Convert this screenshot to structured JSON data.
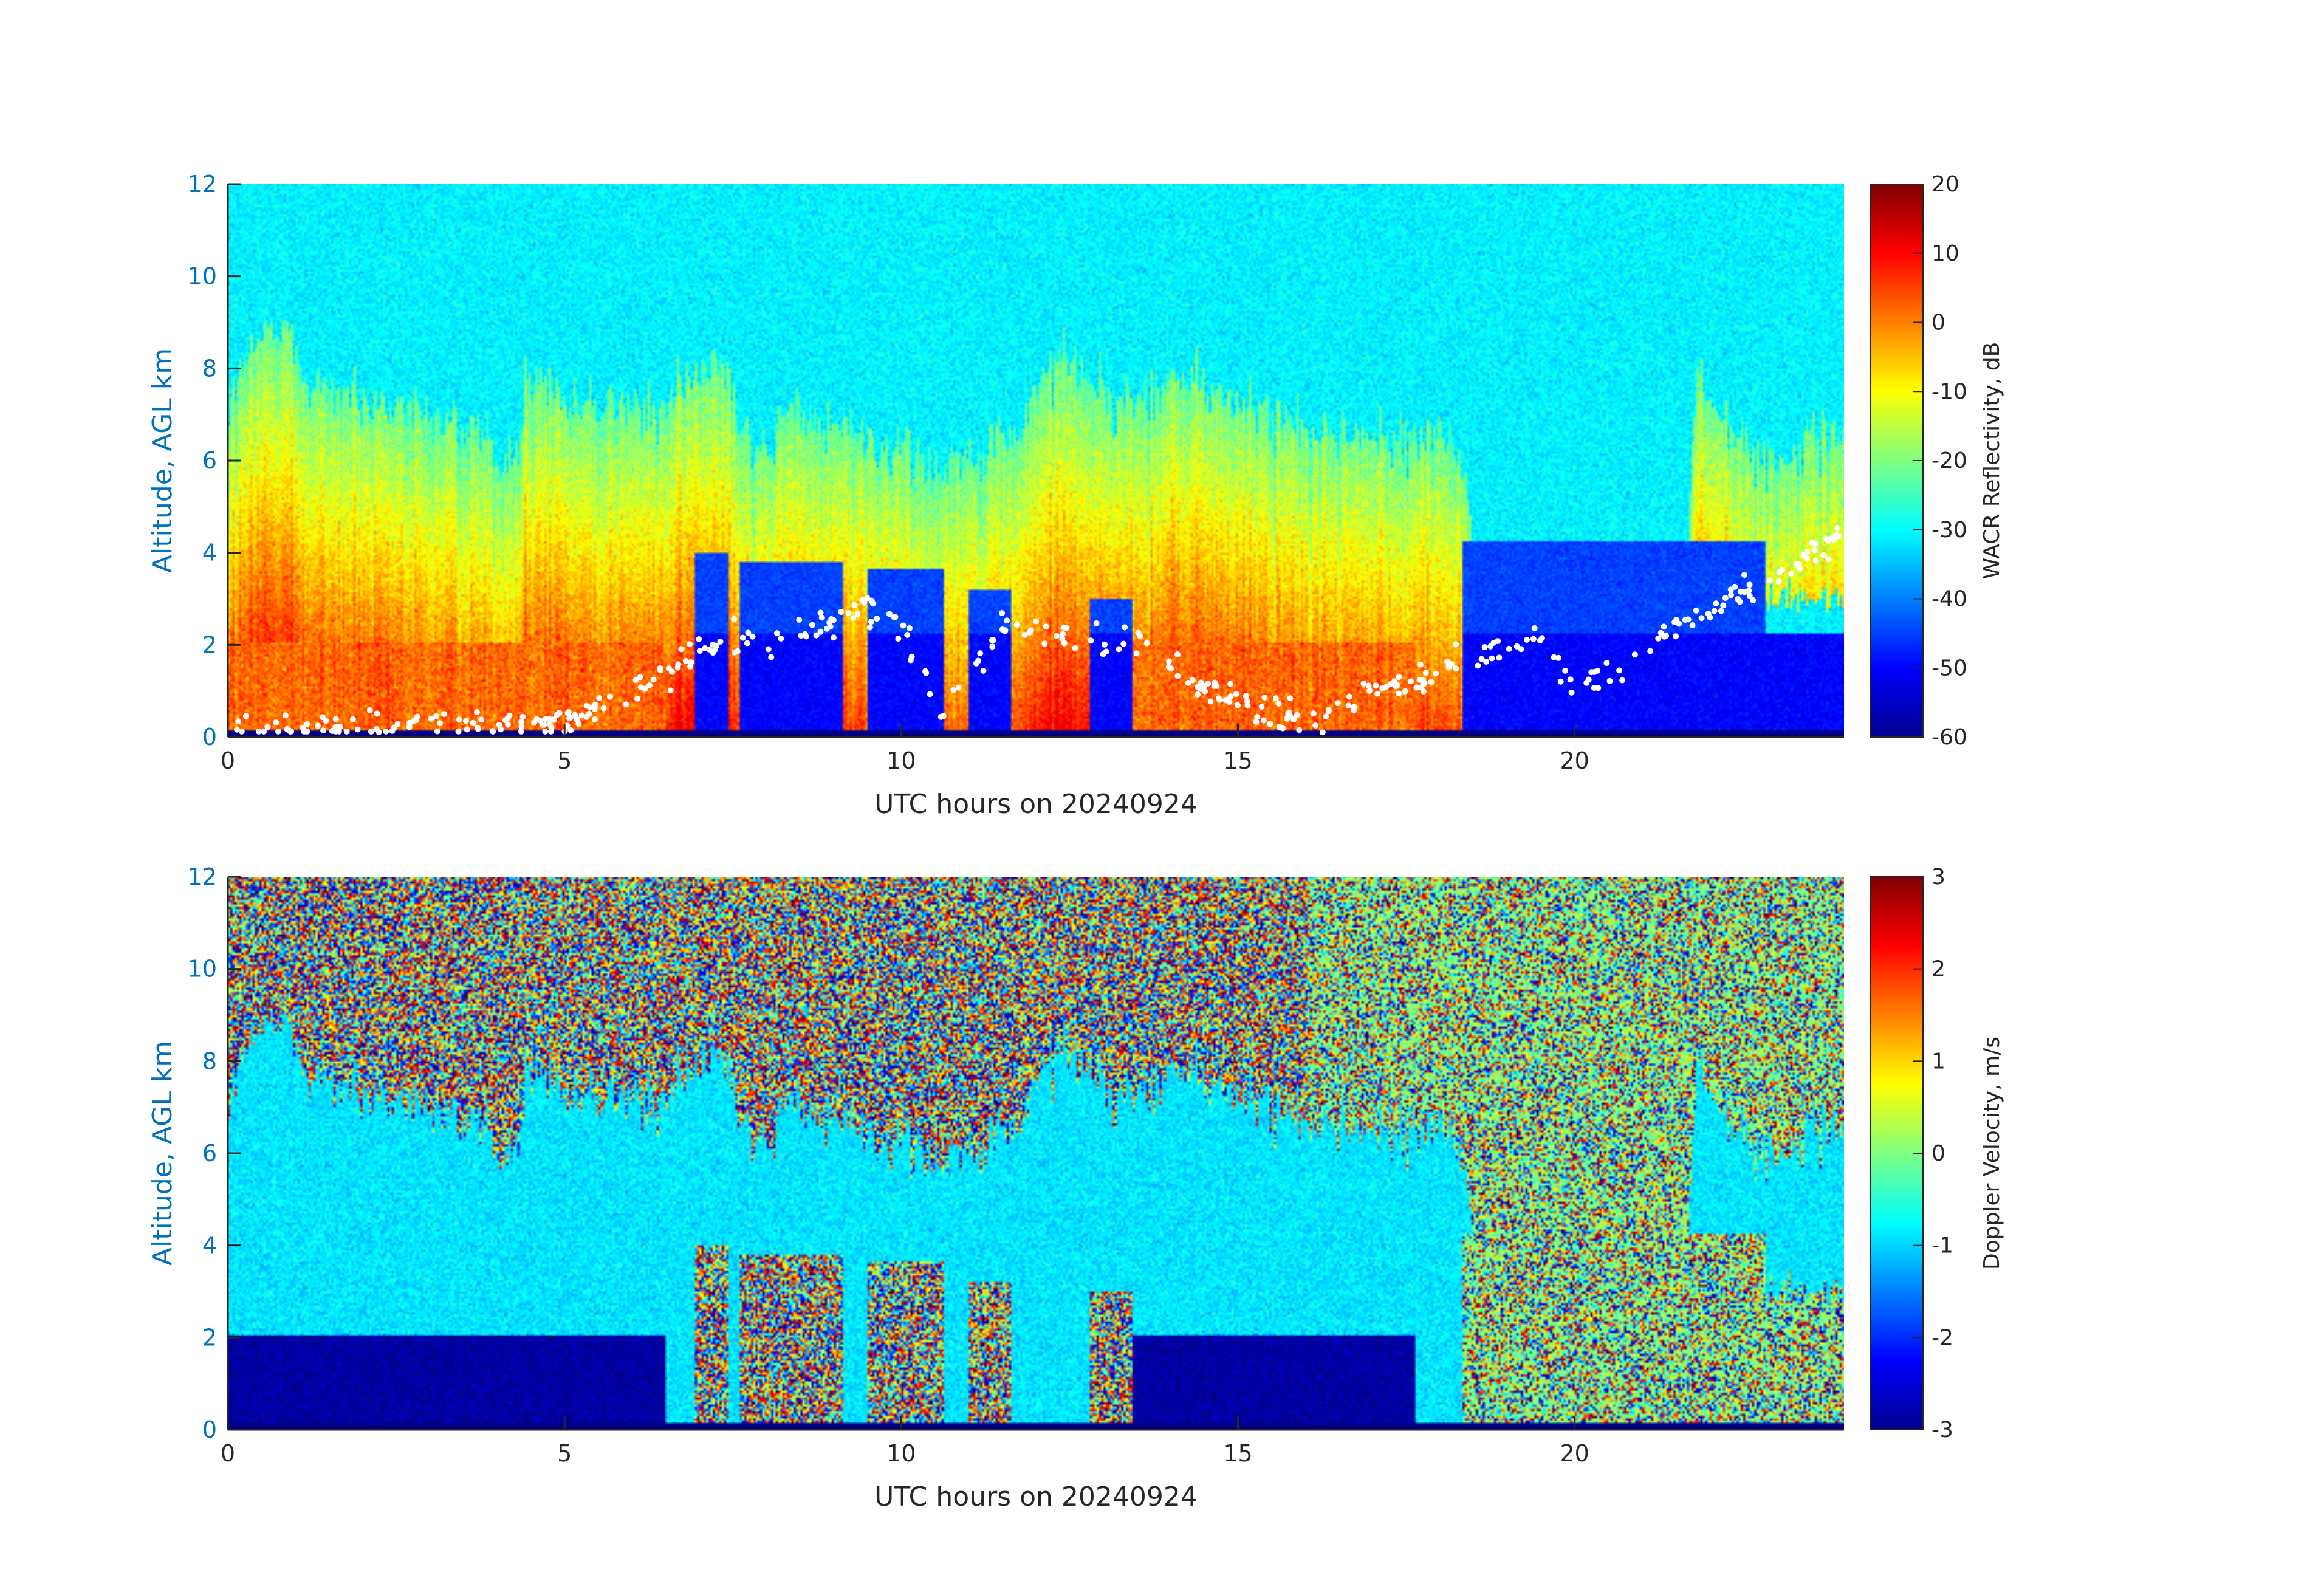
{
  "chart_data": [
    {
      "type": "heatmap",
      "title": "",
      "xlabel": "UTC hours on 20240924",
      "ylabel": "Altitude, AGL km",
      "xlim": [
        0,
        24
      ],
      "ylim": [
        0,
        12
      ],
      "xticks": [
        0,
        5,
        10,
        15,
        20
      ],
      "yticks": [
        0,
        2,
        4,
        6,
        8,
        10,
        12
      ],
      "colorbar": {
        "label": "WACR Reflectivity, dB",
        "range": [
          -60,
          20
        ],
        "ticks": [
          -60,
          -50,
          -40,
          -30,
          -20,
          -10,
          0,
          10,
          20
        ],
        "colormap": "jet"
      },
      "overlay_points": {
        "color": "#ffffff"
      }
    },
    {
      "type": "heatmap",
      "title": "",
      "xlabel": "UTC hours on 20240924",
      "ylabel": "Altitude, AGL km",
      "xlim": [
        0,
        24
      ],
      "ylim": [
        0,
        12
      ],
      "xticks": [
        0,
        5,
        10,
        15,
        20
      ],
      "yticks": [
        0,
        2,
        4,
        6,
        8,
        10,
        12
      ],
      "colorbar": {
        "label": "Doppler Velocity, m/s",
        "range": [
          -3,
          3
        ],
        "ticks": [
          -3,
          -2,
          -1,
          0,
          1,
          2,
          3
        ],
        "colormap": "jet"
      }
    }
  ]
}
